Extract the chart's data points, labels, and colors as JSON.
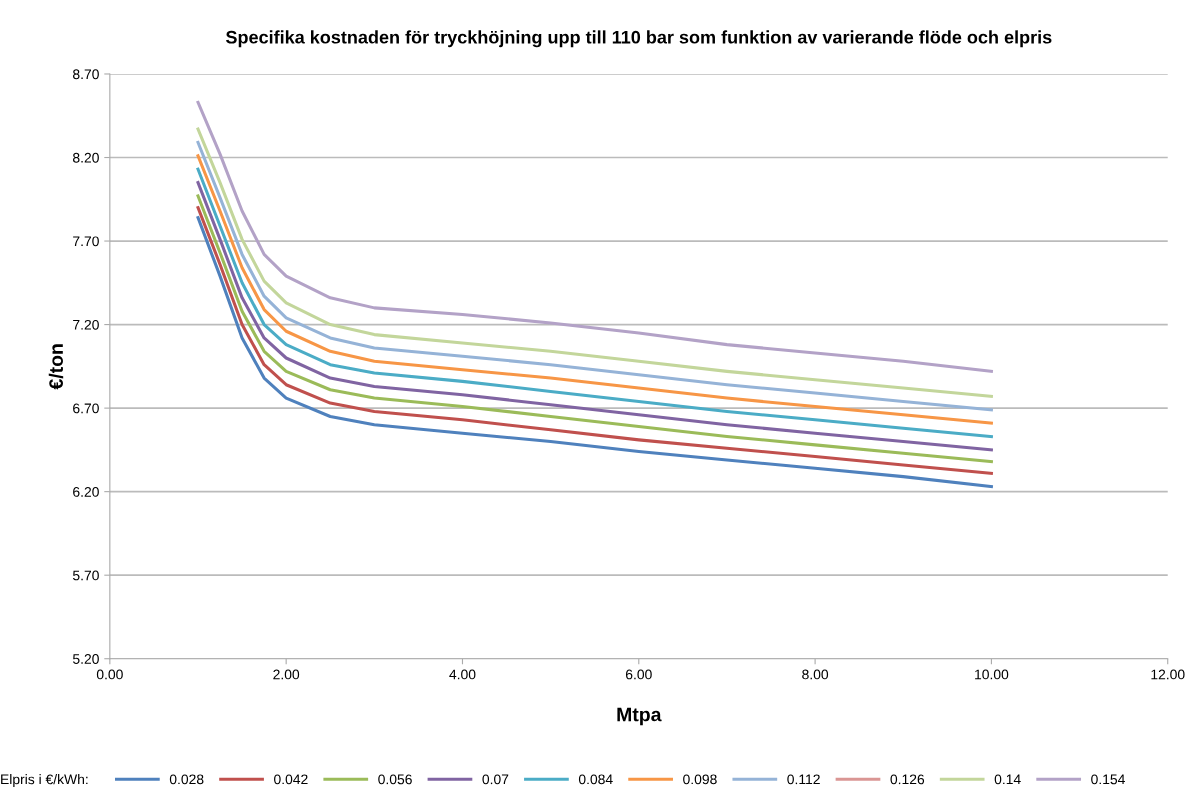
{
  "chart_data": {
    "type": "line",
    "title": "Specifika kostnaden för tryckhöjning upp till 110 bar som funktion av varierande flöde och elpris",
    "xlabel": "Mtpa",
    "ylabel": "€/ton",
    "legend_title": "Elpris i €/kWh:",
    "x": [
      1,
      1.25,
      1.5,
      1.75,
      2,
      2.5,
      3,
      4,
      5,
      6,
      7,
      8,
      9,
      10
    ],
    "series": [
      {
        "name": "0.028",
        "color": "#4f81bd",
        "values": [
          7.84,
          7.49,
          7.12,
          6.88,
          6.76,
          6.65,
          6.6,
          6.55,
          6.5,
          6.44,
          6.39,
          6.34,
          6.29,
          6.23
        ]
      },
      {
        "name": "0.042",
        "color": "#c0504d",
        "values": [
          7.9,
          7.56,
          7.2,
          6.96,
          6.84,
          6.73,
          6.68,
          6.63,
          6.57,
          6.51,
          6.46,
          6.41,
          6.36,
          6.31
        ]
      },
      {
        "name": "0.056",
        "color": "#9bbb59",
        "values": [
          7.97,
          7.63,
          7.28,
          7.04,
          6.92,
          6.81,
          6.76,
          6.71,
          6.65,
          6.59,
          6.53,
          6.48,
          6.43,
          6.38
        ]
      },
      {
        "name": "0.07",
        "color": "#8064a2",
        "values": [
          8.05,
          7.71,
          7.36,
          7.12,
          7.0,
          6.88,
          6.83,
          6.78,
          6.72,
          6.66,
          6.6,
          6.55,
          6.5,
          6.45
        ]
      },
      {
        "name": "0.084",
        "color": "#4bacc6",
        "values": [
          8.13,
          7.79,
          7.45,
          7.2,
          7.08,
          6.96,
          6.91,
          6.86,
          6.8,
          6.74,
          6.68,
          6.63,
          6.58,
          6.53
        ]
      },
      {
        "name": "0.098",
        "color": "#f79646",
        "values": [
          8.21,
          7.88,
          7.54,
          7.29,
          7.16,
          7.04,
          6.98,
          6.93,
          6.88,
          6.82,
          6.76,
          6.71,
          6.66,
          6.61
        ]
      },
      {
        "name": "0.112",
        "color": "#95b3d7",
        "values": [
          8.29,
          7.96,
          7.62,
          7.37,
          7.24,
          7.12,
          7.06,
          7.01,
          6.96,
          6.9,
          6.84,
          6.79,
          6.74,
          6.69
        ]
      },
      {
        "name": "0.126",
        "color": "#da9694",
        "values": [
          null,
          null,
          null,
          null,
          null,
          null,
          null,
          null,
          null,
          null,
          null,
          null,
          null,
          null
        ]
      },
      {
        "name": "0.14",
        "color": "#c3d69b",
        "values": [
          8.37,
          8.05,
          7.71,
          7.46,
          7.33,
          7.2,
          7.14,
          7.09,
          7.04,
          6.98,
          6.92,
          6.87,
          6.82,
          6.77
        ]
      },
      {
        "name": "0.154",
        "color": "#b3a2c7",
        "values": [
          8.53,
          8.22,
          7.88,
          7.62,
          7.49,
          7.36,
          7.3,
          7.26,
          7.21,
          7.15,
          7.08,
          7.03,
          6.98,
          6.92
        ]
      }
    ],
    "xlim": [
      0,
      12
    ],
    "xticks": [
      {
        "value": 0,
        "label": "0.00"
      },
      {
        "value": 2,
        "label": "2.00"
      },
      {
        "value": 4,
        "label": "4.00"
      },
      {
        "value": 6,
        "label": "6.00"
      },
      {
        "value": 8,
        "label": "8.00"
      },
      {
        "value": 10,
        "label": "10.00"
      },
      {
        "value": 12,
        "label": "12.00"
      }
    ],
    "ylim": [
      5.2,
      8.7
    ],
    "yticks": [
      {
        "value": 5.2,
        "label": "5.20"
      },
      {
        "value": 5.7,
        "label": "5.70"
      },
      {
        "value": 6.2,
        "label": "6.20"
      },
      {
        "value": 6.7,
        "label": "6.70"
      },
      {
        "value": 7.2,
        "label": "7.20"
      },
      {
        "value": 7.7,
        "label": "7.70"
      },
      {
        "value": 8.2,
        "label": "8.20"
      },
      {
        "value": 8.7,
        "label": "8.70"
      }
    ],
    "grid": "y",
    "legend": "bottom",
    "marker": "none",
    "line_style": "solid"
  }
}
